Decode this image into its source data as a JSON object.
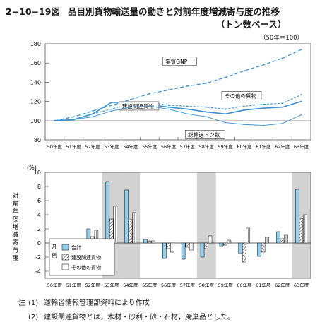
{
  "header": {
    "figure_no": "2−10−19図",
    "title": "品目別貨物輸送量の動きと対前年度増減寄与度の推移",
    "subtitle": "（トン数ベース）",
    "base_note": "（50年＝100）"
  },
  "notes": {
    "prefix": "注",
    "items": [
      {
        "num": "(1)",
        "text": "運輸省情報管理部資料により作成"
      },
      {
        "num": "(2)",
        "text": "建設関連貨物とは，木材・砂利・砂・石材，廃棄品とした。"
      }
    ]
  },
  "colors": {
    "gnp": "#3a8fd0",
    "other": "#3a8fd0",
    "construction": "#3a8fd0",
    "total": "#3a8fd0",
    "bar_total": "#8fd0ee",
    "shade": "#d2d2d2"
  },
  "chart_data": [
    {
      "type": "line",
      "categories": [
        "50年度",
        "51年度",
        "52年度",
        "53年度",
        "54年度",
        "55年度",
        "56年度",
        "57年度",
        "58年度",
        "59年度",
        "60年度",
        "61年度",
        "62年度",
        "63年度"
      ],
      "ylim": [
        80,
        180
      ],
      "yticks": [
        80,
        100,
        120,
        140,
        160,
        180
      ],
      "series": [
        {
          "name": "実質GNP",
          "values": [
            100,
            104,
            110,
            116,
            122,
            128,
            132,
            136,
            139,
            145,
            152,
            158,
            165,
            174
          ]
        },
        {
          "name": "その他の貨物",
          "values": [
            100,
            101,
            107,
            112,
            118,
            119,
            116,
            115,
            114,
            112,
            115,
            117,
            118,
            127
          ]
        },
        {
          "name": "建設関連貨物",
          "values": [
            100,
            101,
            107,
            119,
            119,
            117,
            114,
            112,
            109,
            107,
            111,
            113,
            114,
            120
          ]
        },
        {
          "name": "総輸送トン数",
          "values": [
            100,
            101,
            104,
            110,
            114,
            115,
            112,
            107,
            104,
            98,
            96,
            95,
            97,
            106
          ]
        }
      ]
    },
    {
      "type": "bar",
      "ylabel": "対前年度増減寄与度",
      "unit": "(%)",
      "categories": [
        "50年度",
        "51年度",
        "52年度",
        "53年度",
        "54年度",
        "55年度",
        "56年度",
        "57年度",
        "58年度",
        "59年度",
        "60年度",
        "61年度",
        "62年度",
        "63年度"
      ],
      "ylim": [
        -5,
        10
      ],
      "yticks": [
        -4,
        -2,
        0,
        2,
        4,
        6,
        8,
        10
      ],
      "shaded_categories": [
        "53年度",
        "54年度",
        "58年度",
        "63年度"
      ],
      "legend": {
        "title": "凡例",
        "placement": "bottom-left"
      },
      "series": [
        {
          "name": "合計",
          "values": [
            -1.0,
            -0.5,
            2.0,
            8.7,
            7.5,
            0.5,
            -2.2,
            -2.3,
            -2.0,
            -0.5,
            -1.5,
            -1.9,
            1.6,
            7.6
          ]
        },
        {
          "name": "建設関連貨物",
          "values": [
            -1.0,
            -0.7,
            0.9,
            3.4,
            3.3,
            0.3,
            -0.8,
            -0.6,
            -0.8,
            -0.3,
            -2.7,
            -1.3,
            0.6,
            3.5
          ]
        },
        {
          "name": "その他の貨物",
          "values": [
            -0.6,
            0.2,
            1.8,
            5.2,
            4.3,
            0.3,
            -1.3,
            -1.0,
            1.0,
            0.4,
            2.1,
            0.8,
            1.1,
            4.0
          ]
        }
      ]
    }
  ]
}
